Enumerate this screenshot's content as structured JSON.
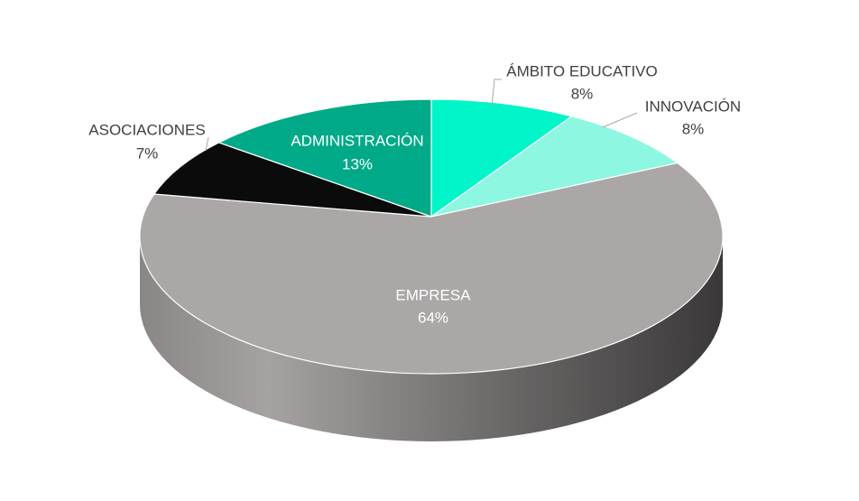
{
  "chart_data": {
    "type": "pie",
    "categories": [
      "ÁMBITO EDUCATIVO",
      "INNOVACIÓN",
      "EMPRESA",
      "ASOCIACIONES",
      "ADMINISTRACIÓN"
    ],
    "values": [
      8,
      8,
      64,
      7,
      13
    ],
    "value_labels": [
      "8%",
      "8%",
      "64%",
      "7%",
      "13%"
    ],
    "colors": [
      "#00f5c8",
      "#8ef7e1",
      "#aba7a7",
      "#0b0b0b",
      "#00aa88"
    ]
  }
}
